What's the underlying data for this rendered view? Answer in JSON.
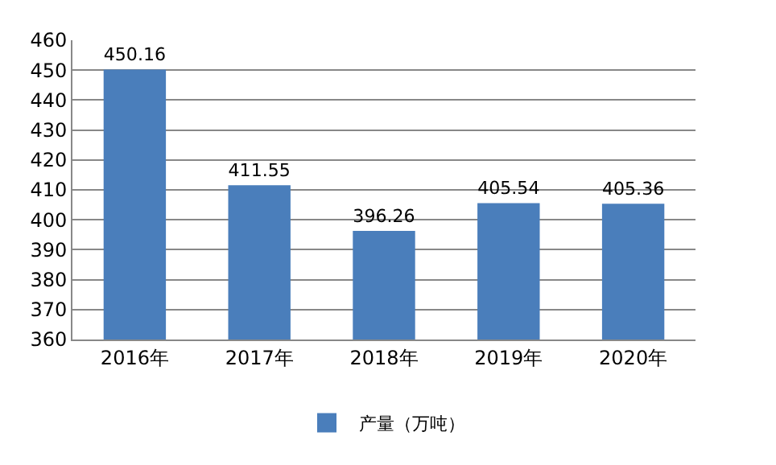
{
  "chart_data": {
    "type": "bar",
    "categories": [
      "2016年",
      "2017年",
      "2018年",
      "2019年",
      "2020年"
    ],
    "series": [
      {
        "name": "产量（万吨）",
        "color": "#4a7ebb",
        "values": [
          450.16,
          411.55,
          396.26,
          405.54,
          405.36
        ]
      }
    ],
    "ylim": [
      360,
      460
    ],
    "yticks": [
      360,
      370,
      380,
      390,
      400,
      410,
      420,
      430,
      440,
      450,
      460
    ],
    "grid": "y",
    "legend": "bottom",
    "data_labels": true
  }
}
